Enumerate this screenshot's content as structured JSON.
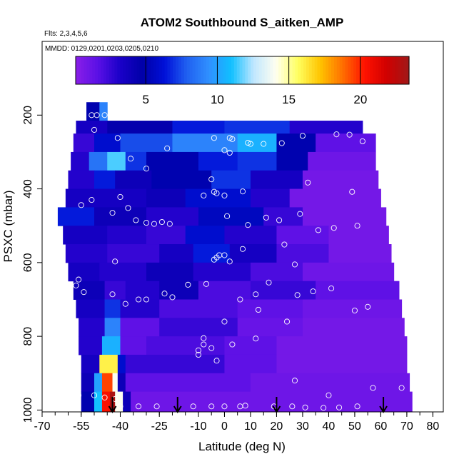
{
  "chart_data": {
    "type": "heatmap",
    "title": "ATOM2 Southbound S_aitken_AMP",
    "flights_note": "Flts: 2,3,4,5,6",
    "dates_note": "MMDD: 0129,0201,0203,0205,0210",
    "xlabel": "Latitude (deg N)",
    "ylabel": "PSXC (mbar)",
    "xlim": [
      -70,
      84
    ],
    "ylim": [
      1005,
      0
    ],
    "x_ticks": [
      "-70",
      "-55",
      "-40",
      "-25",
      "-10",
      "0",
      "10",
      "20",
      "30",
      "40",
      "50",
      "60",
      "70",
      "80"
    ],
    "y_ticks": [
      "200",
      "400",
      "600",
      "800",
      "1000"
    ],
    "colorbar": {
      "range": [
        0.1,
        23.4
      ],
      "ticks": [
        "5",
        "10",
        "15",
        "20"
      ],
      "colors": [
        "#8a1fe8",
        "#5a10e6",
        "#1a00c8",
        "#0000a8",
        "#0010d8",
        "#2060f0",
        "#3090ff",
        "#10c0ff",
        "#bfe6ff",
        "#fffff0",
        "#ffff60",
        "#ffc400",
        "#ff7000",
        "#ff1200",
        "#d00000",
        "#a01818"
      ]
    },
    "arrow_latitudes": [
      -43,
      -18,
      20,
      61
    ],
    "layers": [
      {
        "p": [
          165,
          215
        ],
        "x0": -53,
        "x1": -45,
        "segs": [
          [
            -53,
            -48,
            5
          ],
          [
            -48,
            -45,
            9
          ]
        ]
      },
      {
        "p": [
          215,
          250
        ],
        "x0": -57,
        "x1": 53,
        "segs": [
          [
            -57,
            -45,
            3.5
          ],
          [
            -45,
            -20,
            4.5
          ],
          [
            -20,
            0,
            6.5
          ],
          [
            0,
            25,
            7
          ],
          [
            25,
            53,
            3
          ]
        ]
      },
      {
        "p": [
          250,
          300
        ],
        "x0": -58,
        "x1": 58,
        "segs": [
          [
            -58,
            -50,
            2.5
          ],
          [
            -50,
            -40,
            6
          ],
          [
            -40,
            -20,
            7.5
          ],
          [
            -20,
            5,
            9
          ],
          [
            5,
            20,
            10.5
          ],
          [
            20,
            35,
            5
          ],
          [
            35,
            58,
            1.5
          ]
        ]
      },
      {
        "p": [
          300,
          350
        ],
        "x0": -59,
        "x1": 58,
        "segs": [
          [
            -59,
            -52,
            3
          ],
          [
            -52,
            -45,
            8.5
          ],
          [
            -45,
            -38,
            11.5
          ],
          [
            -38,
            -30,
            7
          ],
          [
            -30,
            -10,
            5
          ],
          [
            -10,
            5,
            6.5
          ],
          [
            5,
            20,
            7
          ],
          [
            20,
            32,
            5
          ],
          [
            32,
            58,
            1
          ]
        ]
      },
      {
        "p": [
          350,
          400
        ],
        "x0": -60,
        "x1": 59,
        "segs": [
          [
            -60,
            -50,
            3
          ],
          [
            -50,
            -42,
            6.5
          ],
          [
            -42,
            -28,
            4
          ],
          [
            -28,
            -5,
            5
          ],
          [
            -5,
            10,
            7
          ],
          [
            10,
            30,
            3.5
          ],
          [
            30,
            59,
            0.8
          ]
        ]
      },
      {
        "p": [
          400,
          450
        ],
        "x0": -61,
        "x1": 60,
        "segs": [
          [
            -61,
            -30,
            3.5
          ],
          [
            -30,
            -15,
            4
          ],
          [
            -15,
            10,
            6
          ],
          [
            10,
            25,
            3
          ],
          [
            25,
            60,
            0.8
          ]
        ]
      },
      {
        "p": [
          450,
          500
        ],
        "x0": -64,
        "x1": 62,
        "segs": [
          [
            -64,
            -50,
            6.5
          ],
          [
            -50,
            -30,
            4
          ],
          [
            -30,
            -10,
            3
          ],
          [
            -10,
            15,
            5.5
          ],
          [
            15,
            30,
            2.5
          ],
          [
            30,
            62,
            0.8
          ]
        ]
      },
      {
        "p": [
          500,
          550
        ],
        "x0": -62,
        "x1": 63,
        "segs": [
          [
            -62,
            -45,
            3.5
          ],
          [
            -45,
            -30,
            3
          ],
          [
            -30,
            -15,
            2.5
          ],
          [
            -15,
            0,
            6
          ],
          [
            0,
            20,
            3
          ],
          [
            20,
            40,
            1.5
          ],
          [
            40,
            63,
            0.8
          ]
        ]
      },
      {
        "p": [
          550,
          600
        ],
        "x0": -61,
        "x1": 64,
        "segs": [
          [
            -61,
            -45,
            3
          ],
          [
            -45,
            -25,
            2.5
          ],
          [
            -25,
            -12,
            3.5
          ],
          [
            -12,
            2,
            6.5
          ],
          [
            2,
            20,
            3.5
          ],
          [
            20,
            40,
            2
          ],
          [
            40,
            64,
            0.8
          ]
        ]
      },
      {
        "p": [
          600,
          650
        ],
        "x0": -60,
        "x1": 65,
        "segs": [
          [
            -60,
            -48,
            3.5
          ],
          [
            -48,
            -30,
            3
          ],
          [
            -30,
            -12,
            4
          ],
          [
            -12,
            10,
            3
          ],
          [
            10,
            30,
            2
          ],
          [
            30,
            65,
            1
          ]
        ]
      },
      {
        "p": [
          650,
          700
        ],
        "x0": -58,
        "x1": 67,
        "segs": [
          [
            -58,
            -46,
            4
          ],
          [
            -46,
            -38,
            2.5
          ],
          [
            -38,
            -25,
            3
          ],
          [
            -25,
            -10,
            4
          ],
          [
            -10,
            10,
            2
          ],
          [
            10,
            35,
            2.5
          ],
          [
            35,
            67,
            1.5
          ]
        ]
      },
      {
        "p": [
          700,
          750
        ],
        "x0": -57,
        "x1": 68,
        "segs": [
          [
            -57,
            -46,
            3.5
          ],
          [
            -46,
            -40,
            7
          ],
          [
            -40,
            -25,
            3
          ],
          [
            -25,
            5,
            2
          ],
          [
            5,
            30,
            1.5
          ],
          [
            30,
            68,
            1
          ]
        ]
      },
      {
        "p": [
          750,
          800
        ],
        "x0": -56,
        "x1": 69,
        "segs": [
          [
            -56,
            -46,
            3
          ],
          [
            -46,
            -40,
            9
          ],
          [
            -40,
            -25,
            1.5
          ],
          [
            -25,
            5,
            2.5
          ],
          [
            5,
            30,
            1.2
          ],
          [
            30,
            69,
            0.8
          ]
        ]
      },
      {
        "p": [
          800,
          850
        ],
        "x0": -56,
        "x1": 70,
        "segs": [
          [
            -56,
            -47,
            3
          ],
          [
            -47,
            -40,
            10.5
          ],
          [
            -40,
            -30,
            1.5
          ],
          [
            -30,
            0,
            2
          ],
          [
            0,
            20,
            1.5
          ],
          [
            20,
            70,
            0.8
          ]
        ]
      },
      {
        "p": [
          850,
          900
        ],
        "x0": -55,
        "x1": 70,
        "segs": [
          [
            -55,
            -48,
            3.5
          ],
          [
            -48,
            -41,
            16
          ],
          [
            -41,
            -38,
            6
          ],
          [
            -38,
            0,
            2.5
          ],
          [
            0,
            20,
            1.5
          ],
          [
            20,
            70,
            0.8
          ]
        ]
      },
      {
        "p": [
          900,
          950
        ],
        "x0": -55,
        "x1": 71,
        "segs": [
          [
            -55,
            -50,
            4
          ],
          [
            -50,
            -47,
            10
          ],
          [
            -47,
            -43,
            19.5
          ],
          [
            -43,
            -41,
            14
          ],
          [
            -41,
            -38,
            4
          ],
          [
            -38,
            10,
            1.5
          ],
          [
            10,
            71,
            1
          ]
        ]
      },
      {
        "p": [
          950,
          1005
        ],
        "x0": -55,
        "x1": 72,
        "segs": [
          [
            -55,
            -50,
            5
          ],
          [
            -50,
            -47,
            11
          ],
          [
            -47,
            -44,
            20.5
          ],
          [
            -44,
            -42,
            23
          ],
          [
            -42,
            -39,
            14
          ],
          [
            -39,
            -36,
            4
          ],
          [
            -36,
            72,
            1
          ]
        ]
      }
    ],
    "points": [
      [
        -51,
        200
      ],
      [
        -49,
        200
      ],
      [
        -46,
        200
      ],
      [
        -50,
        240
      ],
      [
        -60,
        262
      ],
      [
        -41,
        262
      ],
      [
        -22,
        290
      ],
      [
        -4,
        262
      ],
      [
        2,
        262
      ],
      [
        3,
        265
      ],
      [
        9,
        275
      ],
      [
        10,
        278
      ],
      [
        15,
        278
      ],
      [
        22,
        276
      ],
      [
        30,
        256
      ],
      [
        43,
        252
      ],
      [
        48,
        253
      ],
      [
        61,
        268
      ],
      [
        53,
        271
      ],
      [
        66,
        270
      ],
      [
        -36,
        318
      ],
      [
        -30,
        345
      ],
      [
        0,
        295
      ],
      [
        2,
        302
      ],
      [
        -5,
        374
      ],
      [
        -4,
        408
      ],
      [
        -3,
        412
      ],
      [
        0,
        418
      ],
      [
        7,
        407
      ],
      [
        32,
        383
      ],
      [
        49,
        408
      ],
      [
        62,
        435
      ],
      [
        -55,
        444
      ],
      [
        -51,
        430
      ],
      [
        -40,
        422
      ],
      [
        -37,
        452
      ],
      [
        -43,
        465
      ],
      [
        -34,
        485
      ],
      [
        -30,
        492
      ],
      [
        -27,
        495
      ],
      [
        -24,
        490
      ],
      [
        -21,
        495
      ],
      [
        1,
        474
      ],
      [
        9,
        498
      ],
      [
        16,
        478
      ],
      [
        21,
        485
      ],
      [
        29,
        468
      ],
      [
        36,
        512
      ],
      [
        42,
        506
      ],
      [
        51,
        500
      ],
      [
        64,
        491
      ],
      [
        -8,
        418
      ],
      [
        -42,
        597
      ],
      [
        -3,
        586
      ],
      [
        -4,
        592
      ],
      [
        -2,
        580
      ],
      [
        0,
        580
      ],
      [
        2,
        597
      ],
      [
        7,
        563
      ],
      [
        23,
        551
      ],
      [
        27,
        605
      ],
      [
        -57,
        662
      ],
      [
        -56,
        646
      ],
      [
        -54,
        680
      ],
      [
        -43,
        686
      ],
      [
        -33,
        700
      ],
      [
        -30,
        700
      ],
      [
        -23,
        684
      ],
      [
        -20,
        694
      ],
      [
        -14,
        660
      ],
      [
        -7,
        658
      ],
      [
        12,
        686
      ],
      [
        6,
        700
      ],
      [
        13,
        728
      ],
      [
        17,
        654
      ],
      [
        24,
        760
      ],
      [
        28,
        688
      ],
      [
        34,
        678
      ],
      [
        41,
        670
      ],
      [
        50,
        730
      ],
      [
        55,
        720
      ],
      [
        0,
        760
      ],
      [
        -38,
        712
      ],
      [
        -8,
        805
      ],
      [
        -8,
        822
      ],
      [
        -5,
        832
      ],
      [
        3,
        822
      ],
      [
        12,
        806
      ],
      [
        -10,
        850
      ],
      [
        -10,
        838
      ],
      [
        -3,
        866
      ],
      [
        27,
        920
      ],
      [
        -56,
        960
      ],
      [
        -50,
        960
      ],
      [
        -46,
        966
      ],
      [
        -42,
        970
      ],
      [
        -40,
        990
      ],
      [
        -33,
        990
      ],
      [
        -26,
        990
      ],
      [
        -12,
        990
      ],
      [
        -5,
        990
      ],
      [
        0,
        990
      ],
      [
        6,
        990
      ],
      [
        8,
        988
      ],
      [
        19,
        990
      ],
      [
        26,
        990
      ],
      [
        31,
        993
      ],
      [
        38,
        994
      ],
      [
        44,
        993
      ],
      [
        51,
        990
      ],
      [
        57,
        940
      ],
      [
        68,
        940
      ],
      [
        40,
        960
      ]
    ]
  }
}
